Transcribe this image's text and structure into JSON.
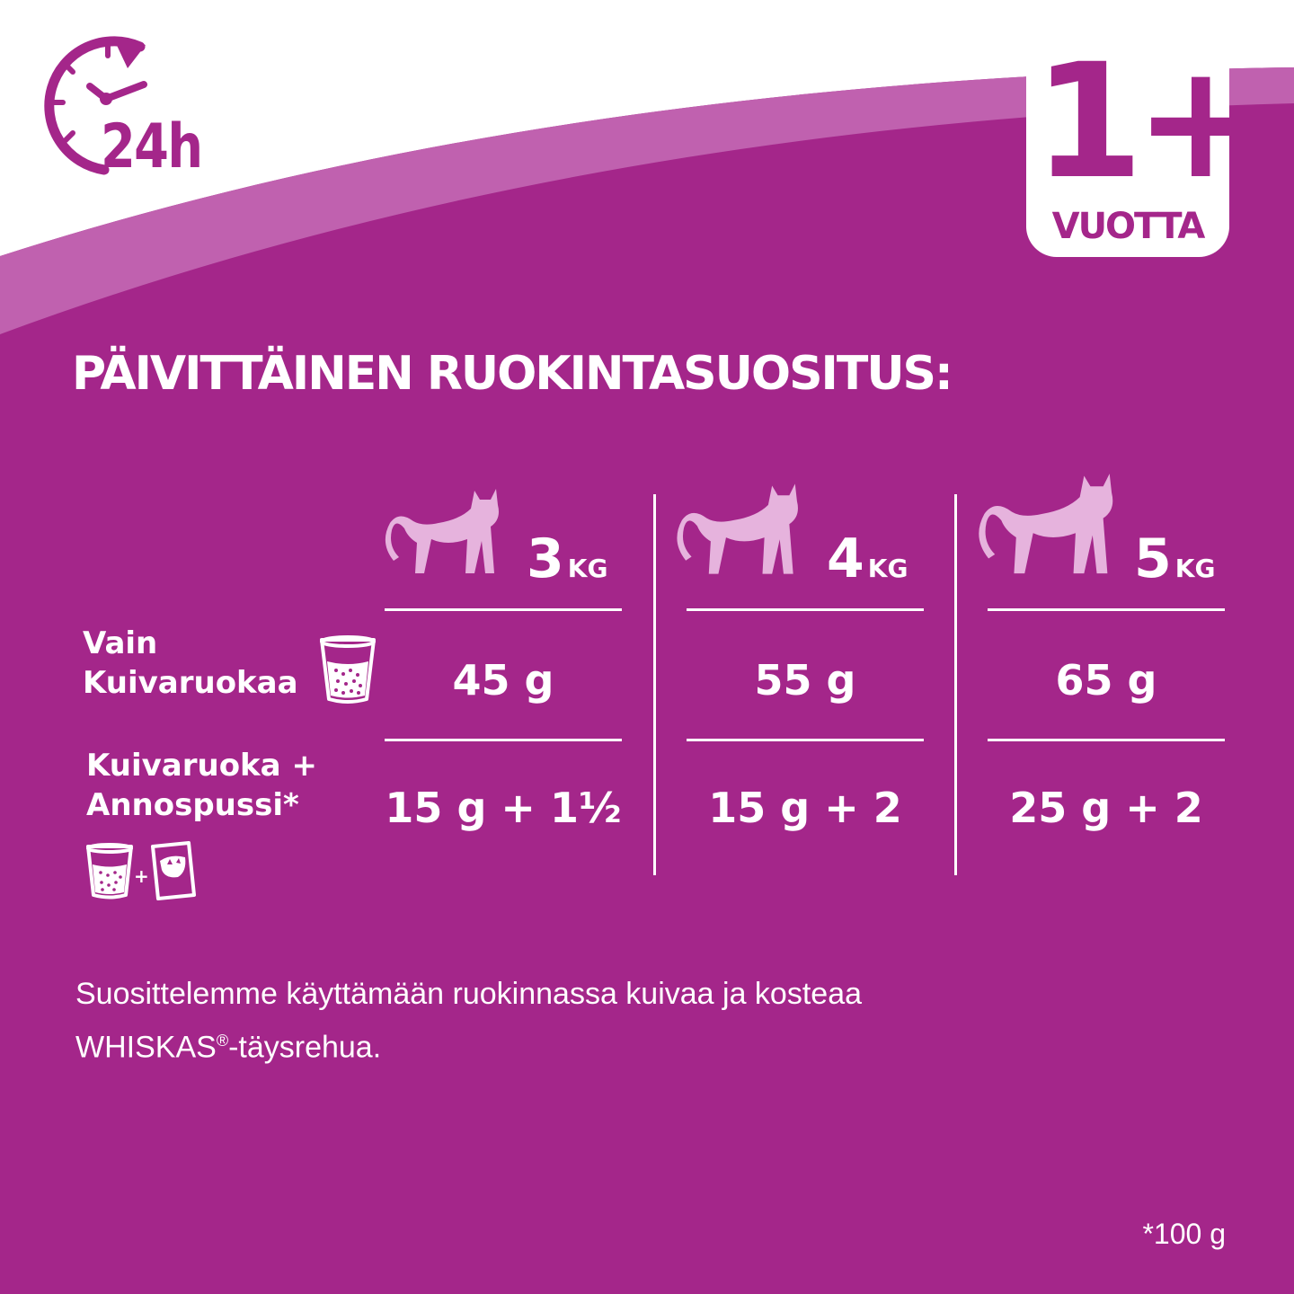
{
  "colors": {
    "background": "#a4268a",
    "band": "#c061af",
    "white": "#ffffff"
  },
  "header": {
    "clock_label": "24h",
    "age_badge": {
      "value": "1+",
      "unit": "VUOTTA"
    }
  },
  "title": "PÄIVITTÄINEN RUOKINTASUOSITUS:",
  "table": {
    "columns": [
      {
        "weight": "3",
        "unit": "KG"
      },
      {
        "weight": "4",
        "unit": "KG"
      },
      {
        "weight": "5",
        "unit": "KG"
      }
    ],
    "rows": [
      {
        "label_line1": "Vain",
        "label_line2": "Kuivaruokaa",
        "icon": "dry-food-cup-icon",
        "values": [
          "45 g",
          "55 g",
          "65 g"
        ]
      },
      {
        "label_line1": "Kuivaruoka +",
        "label_line2": "Annospussi*",
        "icon": "dry-food-plus-pouch-icon",
        "values": [
          "15 g + 1½",
          "15 g + 2",
          "25 g + 2"
        ]
      }
    ]
  },
  "note": {
    "line1": "Suosittelemme käyttämään ruokinnassa kuivaa ja kosteaa",
    "brand": "WHISKAS",
    "reg": "®",
    "rest": "-täysrehua."
  },
  "footnote": "*100 g"
}
